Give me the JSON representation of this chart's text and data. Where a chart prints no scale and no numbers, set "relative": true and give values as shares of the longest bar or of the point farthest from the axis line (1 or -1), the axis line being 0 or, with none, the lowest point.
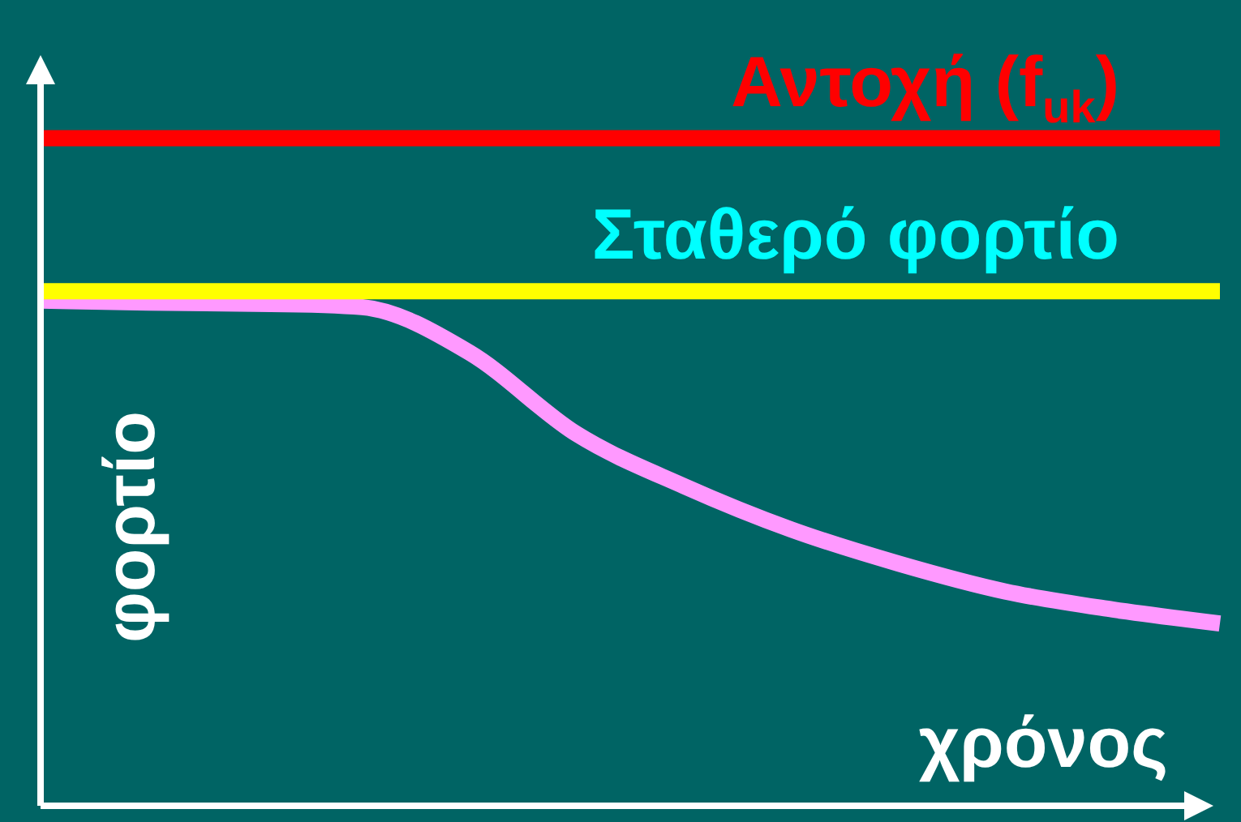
{
  "chart_data": {
    "type": "line",
    "relative": true,
    "xlabel": "χρόνος",
    "ylabel": "φορτίο",
    "categories": [
      null,
      null,
      null,
      null,
      null,
      null,
      null,
      null,
      null,
      null,
      null,
      null
    ],
    "series": [
      {
        "name": "Αντοχή (f$_{uk}$)",
        "color": "#ff0000",
        "values": [
          1,
          1,
          1,
          1,
          1,
          1,
          1,
          1,
          1,
          1,
          1,
          1
        ]
      },
      {
        "name": "Σταθερό φορτίο",
        "color": "#ffff00",
        "values": [
          0.771,
          0.771,
          0.771,
          0.771,
          0.771,
          0.771,
          0.771,
          0.771,
          0.771,
          0.771,
          0.771,
          0.771
        ]
      },
      {
        "color": "#ff99ff",
        "values": [
          0.757,
          0.754,
          0.752,
          0.747,
          0.679,
          0.557,
          0.479,
          0.414,
          0.363,
          0.321,
          0.294,
          0.273
        ]
      }
    ],
    "legend": false,
    "grid": false,
    "marker": "none",
    "line_style": "solid"
  }
}
